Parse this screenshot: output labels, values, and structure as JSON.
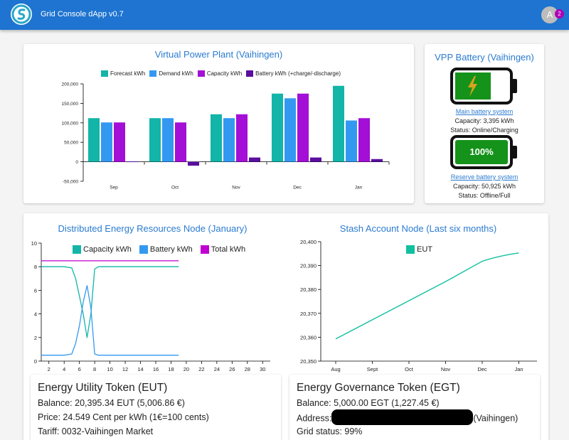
{
  "app": {
    "title": "Grid Console dApp v0.7",
    "avatar_letter": "A",
    "notifications": "2"
  },
  "vpp": {
    "title": "Virtual Power Plant (Vaihingen)",
    "legend": [
      {
        "label": "Forecast kWh",
        "color": "#12b5a8"
      },
      {
        "label": "Demand kWh",
        "color": "#3399f0"
      },
      {
        "label": "Capacity kWh",
        "color": "#a30fd6"
      },
      {
        "label": "Battery kWh (+charge/-discharge)",
        "color": "#5a0f9e"
      }
    ],
    "yticks": [
      "200,000",
      "150,000",
      "100,000",
      "50,000",
      "0",
      "-50,000"
    ]
  },
  "battery": {
    "title": "VPP Battery (Vaihingen)",
    "main": {
      "link": "Main battery system",
      "capacity": "Capacity: 3,395 kWh",
      "status": "Status: Online/Charging"
    },
    "reserve": {
      "percent": "100%",
      "link": "Reserve battery system",
      "capacity": "Capacity: 50,925 kWh",
      "status": "Status: Offline/Full"
    }
  },
  "der": {
    "title": "Distributed Energy Resources Node (January)",
    "legend": [
      {
        "label": "Capacity kWh",
        "color": "#12b5a8"
      },
      {
        "label": "Battery kWh",
        "color": "#3399f0"
      },
      {
        "label": "Total kWh",
        "color": "#c000d0"
      }
    ],
    "yticks": [
      "10",
      "8",
      "6",
      "4",
      "2",
      "0"
    ],
    "xticks": [
      "2",
      "4",
      "6",
      "8",
      "10",
      "12",
      "14",
      "16",
      "18",
      "20",
      "22",
      "24",
      "26",
      "28",
      "30"
    ]
  },
  "stash": {
    "title": "Stash Account Node (Last six months)",
    "legend": [
      {
        "label": "EUT",
        "color": "#12c0a0"
      }
    ],
    "yticks": [
      "20,400",
      "20,390",
      "20,380",
      "20,370",
      "20,360",
      "20,350"
    ],
    "xticks": [
      "Aug",
      "Sept",
      "Oct",
      "Nov",
      "Dec",
      "Jan"
    ]
  },
  "eut": {
    "title": "Energy Utility Token (EUT)",
    "balance": "Balance: 20,395.34 EUT (5,006.86 €)",
    "price": "Price: 24.549 Cent per kWh (1€=100 cents)",
    "tariff": "Tariff: 0032-Vaihingen Market"
  },
  "egt": {
    "title": "Energy Governance Token (EGT)",
    "balance": "Balance: 5,000.00 EGT (1,227.45 €)",
    "address_label": "Address:",
    "address_suffix": "(Vaihingen)",
    "grid_status": "Grid status: 99%"
  },
  "chart_data": [
    {
      "type": "bar",
      "title": "Virtual Power Plant (Vaihingen)",
      "categories": [
        "Sep",
        "Oct",
        "Nov",
        "Dec",
        "Jan"
      ],
      "series": [
        {
          "name": "Forecast kWh",
          "color": "#12b5a8",
          "values": [
            112000,
            112000,
            122000,
            175000,
            195000
          ]
        },
        {
          "name": "Demand kWh",
          "color": "#3399f0",
          "values": [
            101000,
            112000,
            112000,
            163000,
            106000
          ]
        },
        {
          "name": "Capacity kWh",
          "color": "#a30fd6",
          "values": [
            101000,
            101000,
            122000,
            175000,
            112000
          ]
        },
        {
          "name": "Battery kWh (+charge/-discharge)",
          "color": "#5a0f9e",
          "values": [
            1000,
            -10000,
            11000,
            11000,
            7000
          ]
        }
      ],
      "ylim": [
        -50000,
        200000
      ],
      "legend": "top"
    },
    {
      "type": "line",
      "title": "Distributed Energy Resources Node (January)",
      "x": [
        1,
        2,
        3,
        4,
        5,
        5.5,
        6,
        6.5,
        7,
        7.5,
        8,
        8.5,
        9,
        10,
        11,
        12,
        13,
        14,
        15,
        16,
        17,
        18,
        19
      ],
      "series": [
        {
          "name": "Capacity kWh",
          "color": "#12b5a8",
          "values": [
            8,
            8,
            8,
            8,
            7.9,
            7.0,
            5.5,
            4.0,
            2.0,
            4.0,
            7.8,
            8,
            8,
            8,
            8,
            8,
            8,
            8,
            8,
            8,
            8,
            8,
            8
          ]
        },
        {
          "name": "Battery kWh",
          "color": "#3399f0",
          "values": [
            0.5,
            0.5,
            0.5,
            0.5,
            0.6,
            1.5,
            3.0,
            5.0,
            6.4,
            4.5,
            0.6,
            0.5,
            0.5,
            0.5,
            0.5,
            0.5,
            0.5,
            0.5,
            0.5,
            0.5,
            0.5,
            0.5,
            0.5
          ]
        },
        {
          "name": "Total kWh",
          "color": "#c000d0",
          "values": [
            8.5,
            8.5,
            8.5,
            8.5,
            8.5,
            8.5,
            8.5,
            8.5,
            8.5,
            8.5,
            8.5,
            8.5,
            8.5,
            8.5,
            8.5,
            8.5,
            8.5,
            8.5,
            8.5,
            8.5,
            8.5,
            8.5,
            8.5
          ]
        }
      ],
      "ylim": [
        0,
        10
      ],
      "xlim": [
        1,
        31
      ],
      "legend": "top"
    },
    {
      "type": "line",
      "title": "Stash Account Node (Last six months)",
      "categories": [
        "Aug",
        "Sept",
        "Oct",
        "Nov",
        "Dec",
        "Jan"
      ],
      "series": [
        {
          "name": "EUT",
          "color": "#12c0a0",
          "values": [
            20359.3,
            20367.3,
            20375.3,
            20383.3,
            20391.8,
            20395.3
          ]
        }
      ],
      "ylim": [
        20350,
        20400
      ],
      "legend": "top"
    }
  ]
}
